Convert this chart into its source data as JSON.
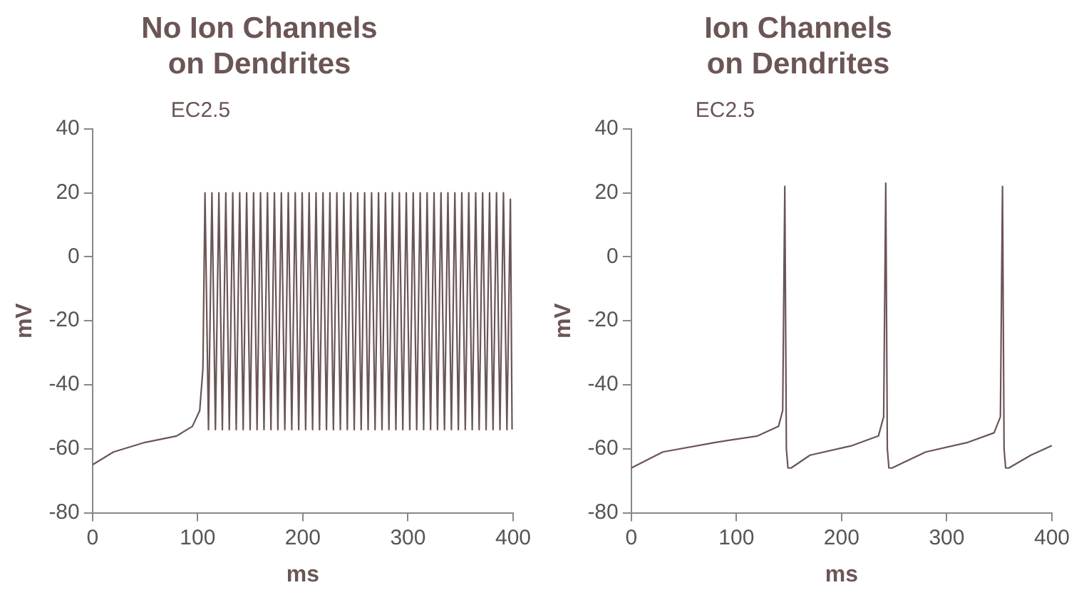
{
  "chart_data": [
    {
      "type": "line",
      "title": "No Ion Channels\non Dendrites",
      "xlabel": "ms",
      "ylabel": "mV",
      "annotations": [
        "EC2.5"
      ],
      "xlim": [
        0,
        400
      ],
      "xticks": [
        0,
        100,
        200,
        300,
        400
      ],
      "ylim": [
        -80,
        40
      ],
      "yticks": [
        -80,
        -60,
        -40,
        -20,
        0,
        20,
        40
      ],
      "grid": false,
      "legend": false,
      "marker": "none",
      "line_style": "solid",
      "series": [
        {
          "color": "#6b5555",
          "x": [
            0,
            20,
            50,
            80,
            95,
            102,
            105,
            107,
            110.3,
            113.6,
            116.9,
            120.2,
            123.5,
            126.8,
            130.1,
            133.4,
            136.7,
            140,
            143.3,
            146.6,
            149.9,
            153.2,
            156.5,
            159.8,
            163.1,
            166.4,
            169.7,
            173,
            176.3,
            179.6,
            182.9,
            186.2,
            189.5,
            192.8,
            196.1,
            199.4,
            202.7,
            206,
            209.3,
            212.6,
            215.9,
            219.2,
            222.5,
            225.8,
            229.1,
            232.4,
            235.7,
            239,
            242.3,
            245.6,
            248.9,
            252.2,
            255.5,
            258.8,
            262.1,
            265.4,
            268.7,
            272,
            275.3,
            278.6,
            281.9,
            285.2,
            288.5,
            291.8,
            295.1,
            298.4,
            301.7,
            305,
            308.3,
            311.6,
            314.9,
            318.2,
            321.5,
            324.8,
            328.1,
            331.4,
            334.7,
            338,
            341.3,
            344.6,
            347.9,
            351.2,
            354.5,
            357.8,
            361.1,
            364.4,
            367.7,
            371,
            374.3,
            377.6,
            380.9,
            384.2,
            387.5,
            390.8,
            394.1,
            397.4,
            399
          ],
          "values": [
            -65,
            -61,
            -58,
            -56,
            -53,
            -48,
            -35,
            20,
            -54,
            20,
            -54,
            20,
            -54,
            20,
            -54,
            20,
            -54,
            20,
            -54,
            20,
            -54,
            20,
            -54,
            20,
            -54,
            20,
            -54,
            20,
            -54,
            20,
            -54,
            20,
            -54,
            20,
            -54,
            20,
            -54,
            20,
            -54,
            20,
            -54,
            20,
            -54,
            20,
            -54,
            20,
            -54,
            20,
            -54,
            20,
            -54,
            20,
            -54,
            20,
            -54,
            20,
            -54,
            20,
            -54,
            20,
            -54,
            20,
            -54,
            20,
            -54,
            20,
            -54,
            20,
            -54,
            20,
            -54,
            20,
            -54,
            20,
            -54,
            20,
            -54,
            20,
            -54,
            20,
            -54,
            20,
            -54,
            20,
            -54,
            20,
            -54,
            20,
            -54,
            20,
            -54,
            20,
            -54,
            20,
            -54,
            18,
            -54
          ]
        }
      ]
    },
    {
      "type": "line",
      "title": "Ion Channels\non Dendrites",
      "xlabel": "ms",
      "ylabel": "mV",
      "annotations": [
        "EC2.5"
      ],
      "xlim": [
        0,
        400
      ],
      "xticks": [
        0,
        100,
        200,
        300,
        400
      ],
      "ylim": [
        -80,
        40
      ],
      "yticks": [
        -80,
        -60,
        -40,
        -20,
        0,
        20,
        40
      ],
      "grid": false,
      "legend": false,
      "marker": "none",
      "line_style": "solid",
      "series": [
        {
          "color": "#6b5555",
          "x": [
            0,
            30,
            80,
            120,
            140,
            144,
            146,
            147.5,
            149,
            152,
            170,
            210,
            235,
            240,
            242,
            243.5,
            245,
            248,
            280,
            320,
            345,
            351,
            353,
            354.5,
            356,
            359,
            380,
            400
          ],
          "values": [
            -66,
            -61,
            -58,
            -56,
            -53,
            -48,
            22,
            -60,
            -66,
            -66,
            -62,
            -59,
            -56,
            -50,
            23,
            -60,
            -66,
            -66,
            -61,
            -58,
            -55,
            -50,
            22,
            -60,
            -66,
            -66,
            -62,
            -59
          ]
        }
      ]
    }
  ]
}
